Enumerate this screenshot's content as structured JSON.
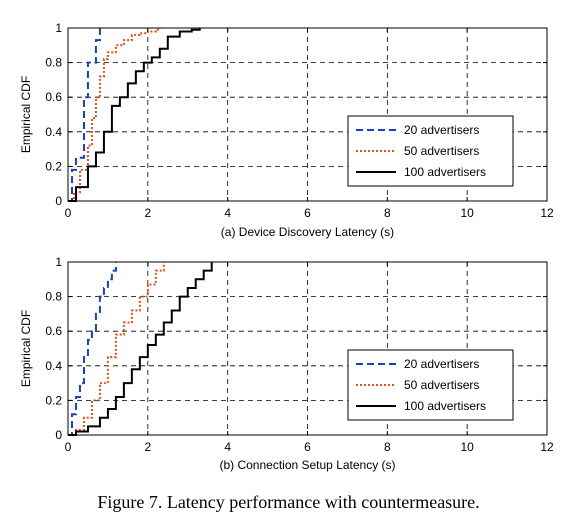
{
  "figure": {
    "caption": "Figure 7.   Latency performance with countermeasure."
  },
  "chart_data": [
    {
      "type": "line",
      "step": true,
      "xlabel": "(a) Device Discovery Latency (s)",
      "ylabel": "Empirical CDF",
      "xlim": [
        0,
        12
      ],
      "ylim": [
        0,
        1
      ],
      "xticks": [
        "0",
        "2",
        "4",
        "6",
        "8",
        "10",
        "12"
      ],
      "yticks": [
        "0",
        "0.2",
        "0.4",
        "0.6",
        "0.8",
        "1"
      ],
      "grid": true,
      "legend_position": "right-middle",
      "series": [
        {
          "name": "20 advertisers",
          "color": "#1f3fbf",
          "style": "dashed",
          "x": [
            0.1,
            0.2,
            0.4,
            0.5,
            0.7,
            0.8
          ],
          "y": [
            0.18,
            0.25,
            0.6,
            0.8,
            0.93,
            1.0
          ]
        },
        {
          "name": "50 advertisers",
          "color": "#d9541e",
          "style": "dotted",
          "x": [
            0.15,
            0.3,
            0.5,
            0.6,
            0.7,
            0.8,
            0.9,
            1.0,
            1.2,
            1.4,
            1.6,
            1.8,
            2.0,
            2.2,
            2.3
          ],
          "y": [
            0.05,
            0.18,
            0.32,
            0.48,
            0.6,
            0.72,
            0.82,
            0.86,
            0.9,
            0.93,
            0.96,
            0.97,
            0.98,
            0.99,
            1.0
          ]
        },
        {
          "name": "100 advertisers",
          "color": "#000000",
          "style": "solid",
          "x": [
            0.2,
            0.5,
            0.7,
            0.9,
            1.1,
            1.3,
            1.5,
            1.7,
            1.9,
            2.1,
            2.3,
            2.5,
            2.8,
            3.1,
            3.3
          ],
          "y": [
            0.08,
            0.2,
            0.28,
            0.4,
            0.55,
            0.6,
            0.68,
            0.75,
            0.8,
            0.83,
            0.88,
            0.95,
            0.98,
            0.99,
            1.0
          ]
        }
      ]
    },
    {
      "type": "line",
      "step": true,
      "xlabel": "(b) Connection Setup Latency (s)",
      "ylabel": "Empirical CDF",
      "xlim": [
        0,
        12
      ],
      "ylim": [
        0,
        1
      ],
      "xticks": [
        "0",
        "2",
        "4",
        "6",
        "8",
        "10",
        "12"
      ],
      "yticks": [
        "0",
        "0.2",
        "0.4",
        "0.6",
        "0.8",
        "1"
      ],
      "grid": true,
      "legend_position": "right-bottom",
      "series": [
        {
          "name": "20 advertisers",
          "color": "#1f3fbf",
          "style": "dashed",
          "x": [
            0.1,
            0.2,
            0.3,
            0.4,
            0.5,
            0.6,
            0.7,
            0.8,
            0.9,
            1.0,
            1.1,
            1.2
          ],
          "y": [
            0.12,
            0.22,
            0.3,
            0.45,
            0.55,
            0.6,
            0.7,
            0.8,
            0.85,
            0.9,
            0.95,
            1.0
          ]
        },
        {
          "name": "50 advertisers",
          "color": "#d9541e",
          "style": "dotted",
          "x": [
            0.2,
            0.4,
            0.6,
            0.8,
            1.0,
            1.2,
            1.4,
            1.6,
            1.8,
            2.0,
            2.2,
            2.4
          ],
          "y": [
            0.03,
            0.1,
            0.2,
            0.3,
            0.45,
            0.58,
            0.65,
            0.72,
            0.8,
            0.87,
            0.95,
            1.0
          ]
        },
        {
          "name": "100 advertisers",
          "color": "#000000",
          "style": "solid",
          "x": [
            0.2,
            0.5,
            0.8,
            1.0,
            1.2,
            1.4,
            1.6,
            1.8,
            2.0,
            2.2,
            2.4,
            2.6,
            2.8,
            3.0,
            3.2,
            3.4,
            3.6
          ],
          "y": [
            0.02,
            0.05,
            0.1,
            0.15,
            0.22,
            0.3,
            0.38,
            0.45,
            0.52,
            0.58,
            0.65,
            0.72,
            0.8,
            0.85,
            0.9,
            0.95,
            1.0
          ]
        }
      ]
    }
  ]
}
